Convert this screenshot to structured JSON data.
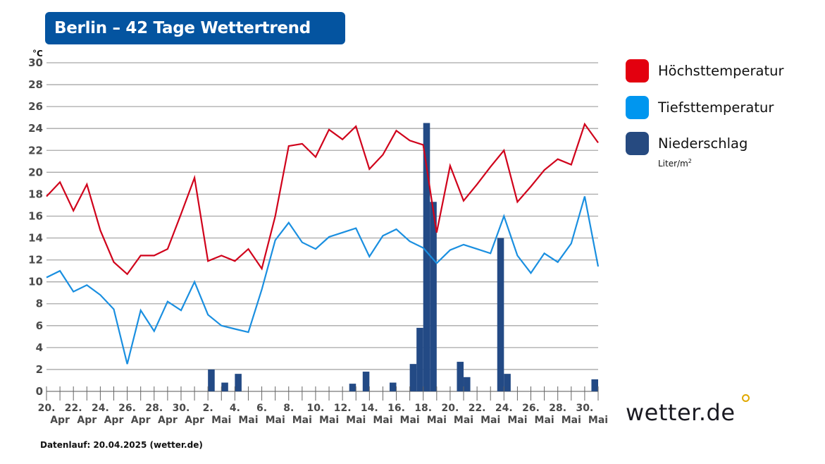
{
  "title": "Berlin – 42 Tage Wettertrend",
  "footer": "Datenlauf: 20.04.2025 (wetter.de)",
  "logo": "wetter.de",
  "legend": [
    {
      "label": "Höchsttemperatur",
      "color": "#e3000f"
    },
    {
      "label": "Tiefsttemperatur",
      "color": "#0096ef"
    },
    {
      "label": "Niederschlag",
      "color": "#264a80",
      "unit": "Liter/m",
      "unit_sup": "2"
    }
  ],
  "chart_data": {
    "type": "line",
    "title": "",
    "ylabel": "°C",
    "ylim": [
      0,
      30
    ],
    "yticks": [
      0,
      2,
      4,
      6,
      8,
      10,
      12,
      14,
      16,
      18,
      20,
      22,
      24,
      26,
      28,
      30
    ],
    "grid": true,
    "legend_position": "right",
    "x": [
      "20. Apr",
      "21. Apr",
      "22. Apr",
      "23. Apr",
      "24. Apr",
      "25. Apr",
      "26. Apr",
      "27. Apr",
      "28. Apr",
      "29. Apr",
      "30. Apr",
      "1. Mai",
      "2. Mai",
      "3. Mai",
      "4. Mai",
      "5. Mai",
      "6. Mai",
      "7. Mai",
      "8. Mai",
      "9. Mai",
      "10. Mai",
      "11. Mai",
      "12. Mai",
      "13. Mai",
      "14. Mai",
      "15. Mai",
      "16. Mai",
      "17. Mai",
      "18. Mai",
      "19. Mai",
      "20. Mai",
      "21. Mai",
      "22. Mai",
      "23. Mai",
      "24. Mai",
      "25. Mai",
      "26. Mai",
      "27. Mai",
      "28. Mai",
      "29. Mai",
      "30. Mai",
      "31. Mai"
    ],
    "xtick_labels": [
      {
        "day": "20.",
        "month": "Apr"
      },
      {
        "day": "22.",
        "month": "Apr"
      },
      {
        "day": "24.",
        "month": "Apr"
      },
      {
        "day": "26.",
        "month": "Apr"
      },
      {
        "day": "28.",
        "month": "Apr"
      },
      {
        "day": "30.",
        "month": "Apr"
      },
      {
        "day": "2.",
        "month": "Mai"
      },
      {
        "day": "4.",
        "month": "Mai"
      },
      {
        "day": "6.",
        "month": "Mai"
      },
      {
        "day": "8.",
        "month": "Mai"
      },
      {
        "day": "10.",
        "month": "Mai"
      },
      {
        "day": "12.",
        "month": "Mai"
      },
      {
        "day": "14.",
        "month": "Mai"
      },
      {
        "day": "16.",
        "month": "Mai"
      },
      {
        "day": "18.",
        "month": "Mai"
      },
      {
        "day": "20.",
        "month": "Mai"
      },
      {
        "day": "22.",
        "month": "Mai"
      },
      {
        "day": "24.",
        "month": "Mai"
      },
      {
        "day": "26.",
        "month": "Mai"
      },
      {
        "day": "28.",
        "month": "Mai"
      },
      {
        "day": "30.",
        "month": "Mai"
      }
    ],
    "series": [
      {
        "name": "Höchsttemperatur",
        "color": "#d0021b",
        "values": [
          17.8,
          19.1,
          16.5,
          18.9,
          14.7,
          11.8,
          10.7,
          12.4,
          12.4,
          13.0,
          16.2,
          19.5,
          11.9,
          12.4,
          11.9,
          13.0,
          11.2,
          16.0,
          22.4,
          22.6,
          21.4,
          23.9,
          23.0,
          24.2,
          20.3,
          21.6,
          23.8,
          22.9,
          22.5,
          14.5,
          20.6,
          17.4,
          18.9,
          20.5,
          22.0,
          17.3,
          18.7,
          20.2,
          21.2,
          20.7,
          24.4,
          22.7
        ]
      },
      {
        "name": "Tiefsttemperatur",
        "color": "#1a8fe0",
        "values": [
          10.4,
          11.0,
          9.1,
          9.7,
          8.8,
          7.5,
          2.5,
          7.4,
          5.5,
          8.2,
          7.4,
          10.0,
          7.0,
          6.0,
          5.7,
          5.4,
          9.3,
          13.8,
          15.4,
          13.6,
          13.0,
          14.1,
          14.5,
          14.9,
          12.3,
          14.2,
          14.8,
          13.7,
          13.1,
          11.7,
          12.9,
          13.4,
          13.0,
          12.6,
          16.0,
          12.4,
          10.8,
          12.6,
          11.8,
          13.5,
          17.8,
          11.4
        ]
      }
    ],
    "precipitation": {
      "name": "Niederschlag",
      "unit": "Liter/m²",
      "color": "#234a85",
      "bars": [
        {
          "date": "2. Mai",
          "half": 2,
          "value": 2.0
        },
        {
          "date": "3. Mai",
          "half": 2,
          "value": 0.8
        },
        {
          "date": "4. Mai",
          "half": 2,
          "value": 1.6
        },
        {
          "date": "13. Mai",
          "half": 1,
          "value": 0.7
        },
        {
          "date": "14. Mai",
          "half": 1,
          "value": 1.8
        },
        {
          "date": "16. Mai",
          "half": 1,
          "value": 0.8
        },
        {
          "date": "17. Mai",
          "half": 2,
          "value": 2.5
        },
        {
          "date": "18. Mai",
          "half": 1,
          "value": 5.8
        },
        {
          "date": "18. Mai",
          "half": 2,
          "value": 24.5
        },
        {
          "date": "19. Mai",
          "half": 1,
          "value": 17.3
        },
        {
          "date": "21. Mai",
          "half": 1,
          "value": 2.7
        },
        {
          "date": "21. Mai",
          "half": 2,
          "value": 1.3
        },
        {
          "date": "24. Mai",
          "half": 1,
          "value": 14.0
        },
        {
          "date": "24. Mai",
          "half": 2,
          "value": 1.6
        },
        {
          "date": "31. Mai",
          "half": 1,
          "value": 1.1
        }
      ]
    }
  }
}
